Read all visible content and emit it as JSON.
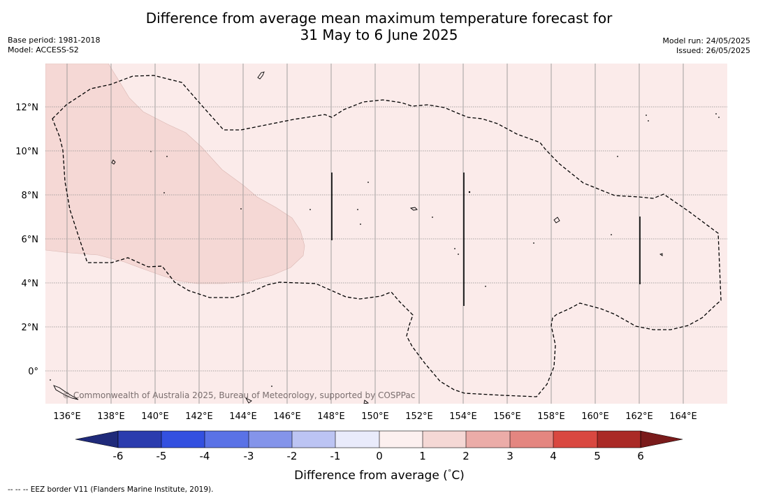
{
  "title": {
    "line1": "Difference from average mean maximum temperature forecast for",
    "line2": "31 May to 6 June 2025"
  },
  "meta_left": {
    "base_period": "Base period: 1981-2018",
    "model": "Model: ACCESS-S2"
  },
  "meta_right": {
    "model_run": "Model run: 24/05/2025",
    "issued": "Issued: 26/05/2025"
  },
  "map": {
    "longitude_labels": [
      "136°E",
      "138°E",
      "140°E",
      "142°E",
      "144°E",
      "146°E",
      "148°E",
      "150°E",
      "152°E",
      "154°E",
      "156°E",
      "158°E",
      "160°E",
      "162°E",
      "164°E"
    ],
    "latitude_labels": [
      "12°N",
      "10°N",
      "8°N",
      "6°N",
      "4°N",
      "2°N",
      "0°"
    ],
    "copyright": "© Commonwealth of Australia 2025, Bureau of Meteorology, supported by COSPPac",
    "colors": {
      "anomaly_0_to_1": "#fbebea",
      "anomaly_1_to_2": "#f5d8d5",
      "eez_border": "#000000"
    }
  },
  "colorbar": {
    "tick_labels": [
      "-6",
      "-5",
      "-4",
      "-3",
      "-2",
      "-1",
      "0",
      "1",
      "2",
      "3",
      "4",
      "5",
      "6"
    ],
    "label": "Difference from average ($^\\circ$C)",
    "label_text": "Difference from average (",
    "label_unit_deg": "°",
    "label_unit_c": "C)",
    "colors": [
      "#1f2a7a",
      "#2b3cae",
      "#3350e0",
      "#5a72e6",
      "#8494ea",
      "#bcc4f3",
      "#e9ebfb",
      "#fcf0ef",
      "#f5d8d5",
      "#ebaca8",
      "#e48680",
      "#d94840",
      "#aa2a26",
      "#7a1b1b"
    ]
  },
  "footnote": "--  --  -- EEZ border V11 (Flanders Marine Institute, 2019)."
}
